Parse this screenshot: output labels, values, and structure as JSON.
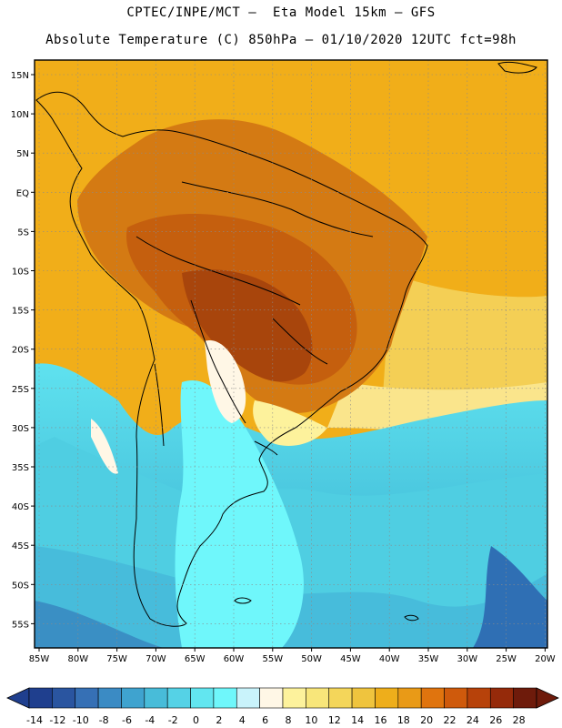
{
  "title_line1": "CPTEC/INPE/MCT –  Eta Model 15km – GFS",
  "title_line2": "Absolute Temperature (C) 850hPa – 01/10/2020 12UTC fct=98h",
  "lat_labels": [
    "15N",
    "10N",
    "5N",
    "EQ",
    "5S",
    "10S",
    "15S",
    "20S",
    "25S",
    "30S",
    "35S",
    "40S",
    "45S",
    "50S",
    "55S"
  ],
  "lon_labels": [
    "85W",
    "80W",
    "75W",
    "70W",
    "65W",
    "60W",
    "55W",
    "50W",
    "45W",
    "40W",
    "35W",
    "30W",
    "25W",
    "20W"
  ],
  "colorbar": {
    "labels": [
      "-14",
      "-12",
      "-10",
      "-8",
      "-6",
      "-4",
      "-2",
      "0",
      "2",
      "4",
      "6",
      "8",
      "10",
      "12",
      "14",
      "16",
      "18",
      "20",
      "22",
      "24",
      "26",
      "28"
    ],
    "colors": [
      "#1f3f8e",
      "#2a55a0",
      "#3670b5",
      "#3b8bc4",
      "#3fa3cf",
      "#48bcd9",
      "#55d2e6",
      "#62e6f0",
      "#6ff7fb",
      "#c9f3fb",
      "#fff7e6",
      "#fdf29c",
      "#f8e67a",
      "#f4d65a",
      "#efc43e",
      "#eeae1b",
      "#e99a17",
      "#e0740e",
      "#cf5a0c",
      "#b7420a",
      "#952a0a",
      "#6e1b0b"
    ]
  },
  "legend_colors": {
    "ocean_warm": "#f1ae19",
    "land_hot": "#c8600f",
    "land_very_hot": "#a8450c",
    "cold_south": "#48c9e0",
    "coast_line": "#000000"
  }
}
